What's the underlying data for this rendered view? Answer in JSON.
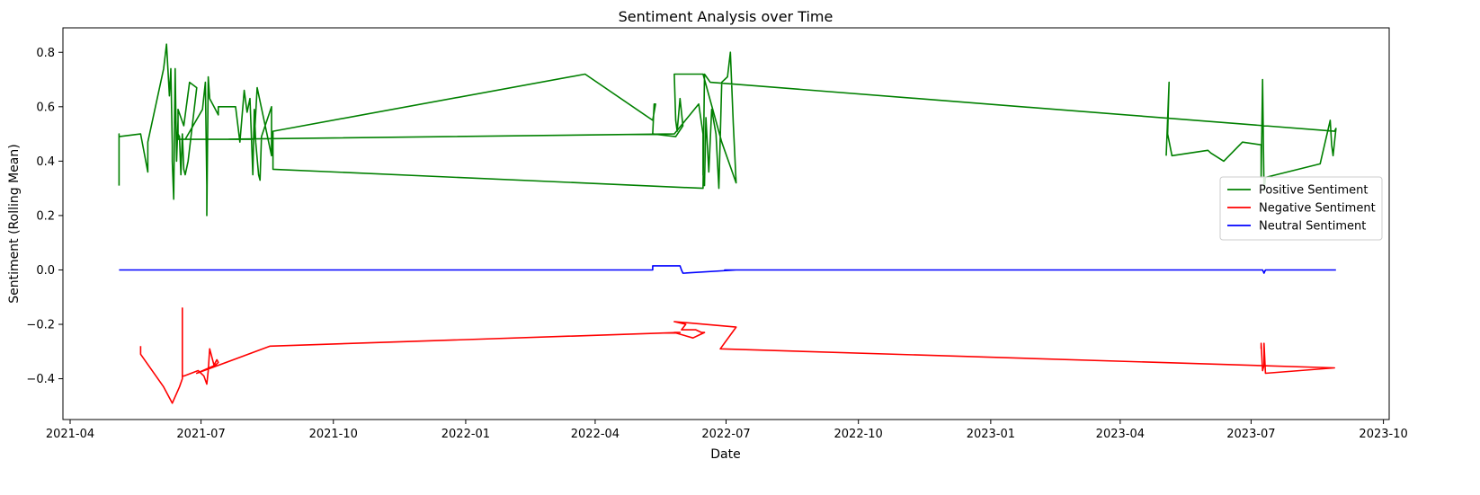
{
  "chart_data": {
    "type": "line",
    "title": "Sentiment Analysis over Time",
    "xlabel": "Date",
    "ylabel": "Sentiment (Rolling Mean)",
    "xlim": [
      "2021-03-27",
      "2023-10-05"
    ],
    "ylim": [
      -0.55,
      0.89
    ],
    "x_ticks": [
      "2021-04",
      "2021-07",
      "2021-10",
      "2022-01",
      "2022-04",
      "2022-07",
      "2022-10",
      "2023-01",
      "2023-04",
      "2023-07",
      "2023-10"
    ],
    "y_ticks": [
      -0.4,
      -0.2,
      0.0,
      0.2,
      0.4,
      0.6,
      0.8
    ],
    "y_tick_labels": [
      "−0.4",
      "−0.2",
      "0.0",
      "0.2",
      "0.4",
      "0.6",
      "0.8"
    ],
    "grid": false,
    "legend_position": "center-right",
    "series": [
      {
        "name": "Positive Sentiment",
        "color": "#008000",
        "x": [
          "2021-05-05",
          "2021-05-05",
          "2021-05-05",
          "2021-05-05",
          "2021-05-20",
          "2021-05-25",
          "2021-05-25",
          "2021-06-05",
          "2021-06-07",
          "2021-06-09",
          "2021-06-10",
          "2021-06-11",
          "2021-06-11",
          "2021-06-12",
          "2021-06-13",
          "2021-06-14",
          "2021-06-15",
          "2021-06-15",
          "2021-06-16",
          "2021-06-17",
          "2021-06-18",
          "2021-06-19",
          "2021-06-20",
          "2021-06-22",
          "2021-06-28",
          "2021-06-23",
          "2021-06-19",
          "2021-06-15",
          "2021-06-15",
          "2021-06-20",
          "2021-07-02",
          "2021-07-04",
          "2021-07-05",
          "2021-07-05",
          "2021-07-06",
          "2021-07-07",
          "2021-07-10",
          "2021-07-13",
          "2021-07-13",
          "2021-07-25",
          "2021-07-28",
          "2021-07-31",
          "2021-08-02",
          "2021-08-04",
          "2021-08-06",
          "2021-08-07",
          "2021-08-08",
          "2021-08-10",
          "2021-08-11",
          "2021-08-12",
          "2021-08-19",
          "2021-08-19",
          "2021-08-09",
          "2021-08-07",
          "2021-07-10",
          "2021-06-28",
          "2021-06-18",
          "2021-06-15",
          "2021-06-17",
          "2021-06-20",
          "2021-06-22",
          "2021-07-05",
          "2021-07-12",
          "2022-05-26",
          "2022-06-12",
          "2022-06-15",
          "2022-06-15",
          "2022-06-16",
          "2022-06-17",
          "2022-06-19",
          "2022-06-21",
          "2022-06-24",
          "2022-06-26",
          "2022-06-28",
          "2022-07-02",
          "2022-07-04",
          "2022-07-06",
          "2022-07-08",
          "2022-06-28",
          "2022-06-15",
          "2022-05-26",
          "2022-05-27",
          "2022-05-28",
          "2022-05-30",
          "2022-06-01",
          "2022-05-27",
          "2022-05-11",
          "2022-05-12",
          "2022-05-13",
          "2022-05-11",
          "2022-03-25",
          "2021-08-20",
          "2021-08-20",
          "2022-06-15",
          "2022-06-16",
          "2022-06-20",
          "2023-08-28",
          "2023-08-29",
          "2023-08-27",
          "2023-08-26",
          "2023-08-25",
          "2023-08-18",
          "2023-07-11",
          "2023-07-10",
          "2023-07-09",
          "2023-07-08",
          "2023-07-08",
          "2023-06-25",
          "2023-06-12",
          "2023-06-03",
          "2023-06-01",
          "2023-05-07",
          "2023-05-04",
          "2023-05-05",
          "2023-05-03"
        ],
        "values": [
          0.31,
          0.48,
          0.5,
          0.49,
          0.5,
          0.36,
          0.47,
          0.74,
          0.83,
          0.64,
          0.74,
          0.46,
          0.4,
          0.26,
          0.74,
          0.4,
          0.55,
          0.5,
          0.49,
          0.35,
          0.5,
          0.37,
          0.35,
          0.4,
          0.67,
          0.69,
          0.53,
          0.59,
          0.48,
          0.48,
          0.59,
          0.69,
          0.31,
          0.2,
          0.71,
          0.63,
          0.6,
          0.57,
          0.6,
          0.6,
          0.47,
          0.66,
          0.58,
          0.63,
          0.35,
          0.59,
          0.47,
          0.35,
          0.33,
          0.49,
          0.6,
          0.42,
          0.67,
          0.48,
          0.48,
          0.48,
          0.48,
          0.48,
          0.48,
          0.48,
          0.48,
          0.48,
          0.48,
          0.5,
          0.61,
          0.5,
          0.35,
          0.31,
          0.56,
          0.36,
          0.59,
          0.5,
          0.3,
          0.69,
          0.71,
          0.8,
          0.54,
          0.32,
          0.47,
          0.72,
          0.72,
          0.55,
          0.51,
          0.63,
          0.53,
          0.49,
          0.5,
          0.61,
          0.61,
          0.55,
          0.72,
          0.51,
          0.37,
          0.3,
          0.72,
          0.69,
          0.51,
          0.52,
          0.42,
          0.46,
          0.55,
          0.39,
          0.34,
          0.29,
          0.7,
          0.34,
          0.46,
          0.47,
          0.4,
          0.43,
          0.44,
          0.42,
          0.5,
          0.69,
          0.42
        ]
      },
      {
        "name": "Negative Sentiment",
        "color": "#ff0000",
        "x": [
          "2021-05-20",
          "2021-05-20",
          "2021-06-05",
          "2021-06-11",
          "2021-06-16",
          "2021-06-18",
          "2021-06-18",
          "2021-06-18",
          "2021-06-19",
          "2021-06-29",
          "2021-07-03",
          "2021-07-05",
          "2021-07-06",
          "2021-07-07",
          "2021-07-10",
          "2021-07-12",
          "2021-07-13",
          "2021-07-11",
          "2021-06-28",
          "2021-08-18",
          "2022-05-30",
          "2022-05-26",
          "2022-06-08",
          "2022-06-12",
          "2022-06-16",
          "2022-06-14",
          "2022-06-10",
          "2022-05-31",
          "2022-06-03",
          "2022-05-26",
          "2022-07-08",
          "2022-06-27",
          "2023-08-28",
          "2023-07-11",
          "2023-07-10",
          "2023-07-10",
          "2023-07-09",
          "2023-07-08",
          "2023-07-08"
        ],
        "values": [
          -0.28,
          -0.31,
          -0.43,
          -0.49,
          -0.43,
          -0.4,
          -0.14,
          -0.39,
          -0.39,
          -0.37,
          -0.39,
          -0.42,
          -0.37,
          -0.29,
          -0.35,
          -0.33,
          -0.34,
          -0.35,
          -0.38,
          -0.28,
          -0.23,
          -0.23,
          -0.25,
          -0.24,
          -0.23,
          -0.23,
          -0.22,
          -0.22,
          -0.2,
          -0.19,
          -0.21,
          -0.29,
          -0.36,
          -0.38,
          -0.27,
          -0.35,
          -0.37,
          -0.27,
          -0.29
        ]
      },
      {
        "name": "Neutral Sentiment",
        "color": "#0000ff",
        "x": [
          "2021-05-05",
          "2022-05-10",
          "2022-05-11",
          "2022-05-11",
          "2022-05-30",
          "2022-05-31",
          "2022-06-01",
          "2022-07-08",
          "2022-06-30",
          "2023-07-09",
          "2023-07-10",
          "2023-07-11",
          "2023-08-29"
        ],
        "values": [
          0.0,
          0.0,
          0.0,
          0.015,
          0.015,
          0.0,
          -0.012,
          0.0,
          0.0,
          0.0,
          -0.012,
          0.0,
          0.0
        ]
      }
    ]
  }
}
